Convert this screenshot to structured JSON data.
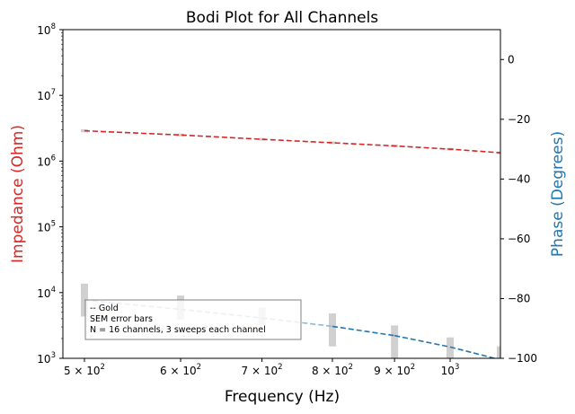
{
  "chart_data": {
    "type": "line",
    "title": "Bodi Plot for All Channels",
    "xlabel": "Frequency (Hz)",
    "ylabel_left": "Impedance (Ohm)",
    "ylabel_right": "Phase (Degrees)",
    "xscale": "log",
    "xlim": [
      480,
      1100
    ],
    "ylim_left": [
      1000,
      100000000
    ],
    "yscale_left": "log",
    "ylim_right": [
      -100,
      10
    ],
    "x_ticks": [
      {
        "value": 500,
        "label": "5 × 10",
        "exp": "2"
      },
      {
        "value": 600,
        "label": "6 × 10",
        "exp": "2"
      },
      {
        "value": 700,
        "label": "7 × 10",
        "exp": "2"
      },
      {
        "value": 800,
        "label": "8 × 10",
        "exp": "2"
      },
      {
        "value": 900,
        "label": "9 × 10",
        "exp": "2"
      },
      {
        "value": 1000,
        "label": "10",
        "exp": "3"
      }
    ],
    "y_left_ticks": [
      {
        "value": 1000,
        "label": "10",
        "exp": "3"
      },
      {
        "value": 10000,
        "label": "10",
        "exp": "4"
      },
      {
        "value": 100000,
        "label": "10",
        "exp": "5"
      },
      {
        "value": 1000000,
        "label": "10",
        "exp": "6"
      },
      {
        "value": 10000000,
        "label": "10",
        "exp": "7"
      },
      {
        "value": 100000000,
        "label": "10",
        "exp": "8"
      }
    ],
    "y_right_ticks": [
      0,
      -20,
      -40,
      -60,
      -80,
      -100
    ],
    "impedance_series": {
      "x": [
        500,
        600,
        700,
        800,
        900,
        1000,
        1100
      ],
      "y": [
        2900000,
        2500000,
        2150000,
        1900000,
        1700000,
        1520000,
        1340000
      ],
      "err": [
        150000,
        120000,
        100000,
        90000,
        80000,
        70000,
        60000
      ]
    },
    "phase_series": {
      "x": [
        500,
        600,
        700,
        800,
        900,
        1000,
        1100
      ],
      "y": [
        -80.5,
        -83.6,
        -86.5,
        -89.3,
        -92.4,
        -96.2,
        -100.5
      ],
      "segment_colors": [
        "#8fb9d8",
        "#8fb9d8",
        "#8fb9d8",
        "#1f77b4",
        "#1f77b4",
        "#1f77b4"
      ],
      "err_bars": [
        {
          "x": 500,
          "low": -86,
          "high": -75
        },
        {
          "x": 600,
          "low": -87,
          "high": -79
        },
        {
          "x": 700,
          "low": -89,
          "high": -83
        },
        {
          "x": 800,
          "low": -96,
          "high": -85
        },
        {
          "x": 900,
          "low": -100,
          "high": -89
        },
        {
          "x": 1000,
          "low": -101,
          "high": -93
        },
        {
          "x": 1100,
          "low": -102,
          "high": -96
        }
      ]
    },
    "legend": {
      "placement": "bottom-left",
      "lines": [
        "-- Gold",
        "SEM error bars",
        "N = 16 channels, 3 sweeps each channel"
      ]
    },
    "colors": {
      "impedance": "#d62728",
      "phase": "#1f77b4",
      "phase_light": "#8fb9d8",
      "error": "#c8c8c8",
      "impedance_label": "#d62728",
      "phase_label": "#1f77b4"
    }
  }
}
